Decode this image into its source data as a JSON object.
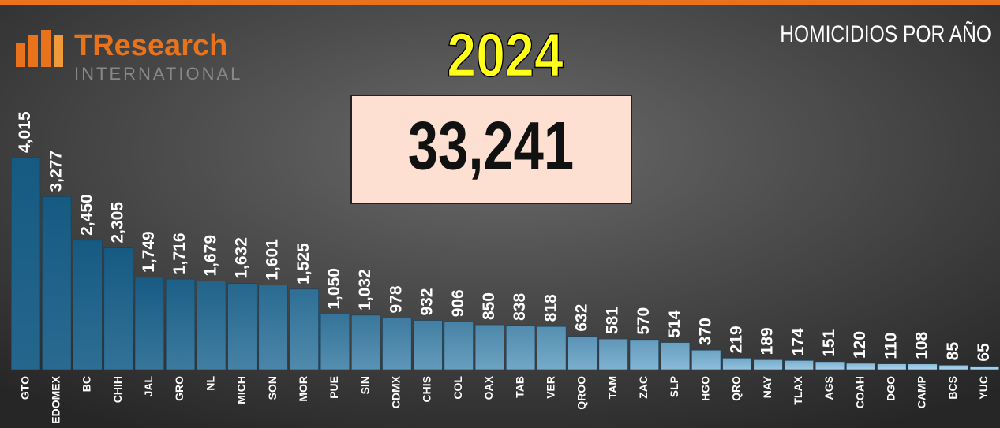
{
  "chart_data": {
    "type": "bar",
    "title": "2024",
    "subtitle": "HOMICIDIOS POR AÑO",
    "total": {
      "value": 33241,
      "label": "33,241"
    },
    "brand": "TResearch",
    "brand_sub": "INTERNATIONAL",
    "categories": [
      "GTO",
      "EDOMEX",
      "BC",
      "CHIH",
      "JAL",
      "GRO",
      "NL",
      "MICH",
      "SON",
      "MOR",
      "PUE",
      "SIN",
      "CDMX",
      "CHIS",
      "COL",
      "OAX",
      "TAB",
      "VER",
      "QROO",
      "TAM",
      "ZAC",
      "SLP",
      "HGO",
      "QRO",
      "NAY",
      "TLAX",
      "AGS",
      "COAH",
      "DGO",
      "CAMP",
      "BCS",
      "YUC"
    ],
    "values": [
      4015,
      3277,
      2450,
      2305,
      1749,
      1716,
      1679,
      1632,
      1601,
      1525,
      1050,
      1032,
      978,
      932,
      906,
      850,
      838,
      818,
      632,
      581,
      570,
      514,
      370,
      219,
      189,
      174,
      151,
      120,
      110,
      108,
      85,
      65
    ],
    "value_labels": [
      "4,015",
      "3,277",
      "2,450",
      "2,305",
      "1,749",
      "1,716",
      "1,679",
      "1,632",
      "1,601",
      "1,525",
      "1,050",
      "1,032",
      "978",
      "932",
      "906",
      "850",
      "838",
      "818",
      "632",
      "581",
      "570",
      "514",
      "370",
      "219",
      "189",
      "174",
      "151",
      "120",
      "110",
      "108",
      "85",
      "65"
    ]
  }
}
